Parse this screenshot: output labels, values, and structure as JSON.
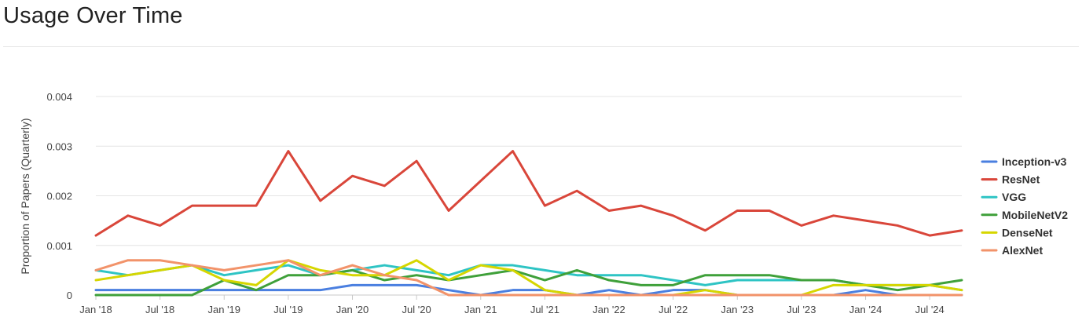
{
  "page": {
    "title": "Usage Over Time"
  },
  "chart_data": {
    "type": "line",
    "title": "",
    "xlabel": "",
    "ylabel": "Proportion of Papers (Quarterly)",
    "ylim": [
      0,
      0.004
    ],
    "yticks": [
      "0",
      "0.001",
      "0.002",
      "0.003",
      "0.004"
    ],
    "ytick_values": [
      0,
      0.001,
      0.002,
      0.003,
      0.004
    ],
    "xticks": [
      "Jan '18",
      "Jul '18",
      "Jan '19",
      "Jul '19",
      "Jan '20",
      "Jul '20",
      "Jan '21",
      "Jul '21",
      "Jan '22",
      "Jul '22",
      "Jan '23",
      "Jul '23",
      "Jan '24",
      "Jul '24"
    ],
    "x": [
      "2018-Q1",
      "2018-Q2",
      "2018-Q3",
      "2018-Q4",
      "2019-Q1",
      "2019-Q2",
      "2019-Q3",
      "2019-Q4",
      "2020-Q1",
      "2020-Q2",
      "2020-Q3",
      "2020-Q4",
      "2021-Q1",
      "2021-Q2",
      "2021-Q3",
      "2021-Q4",
      "2022-Q1",
      "2022-Q2",
      "2022-Q3",
      "2022-Q4",
      "2023-Q1",
      "2023-Q2",
      "2023-Q3",
      "2023-Q4",
      "2024-Q1",
      "2024-Q2",
      "2024-Q3",
      "2024-Q4"
    ],
    "grid": true,
    "legend_position": "right",
    "series": [
      {
        "name": "Inception-v3",
        "color": "#4a7fe0",
        "values": [
          0.0001,
          0.0001,
          0.0001,
          0.0001,
          0.0001,
          0.0001,
          0.0001,
          0.0001,
          0.0002,
          0.0002,
          0.0002,
          0.0001,
          0,
          0.0001,
          0.0001,
          0,
          0.0001,
          0,
          0.0001,
          0.0001,
          0,
          0,
          0,
          0,
          0.0001,
          0,
          0,
          0
        ]
      },
      {
        "name": "ResNet",
        "color": "#d9463a",
        "values": [
          0.0012,
          0.0016,
          0.0014,
          0.0018,
          0.0018,
          0.0018,
          0.0029,
          0.0019,
          0.0024,
          0.0022,
          0.0027,
          0.0017,
          0.0023,
          0.0029,
          0.0018,
          0.0021,
          0.0017,
          0.0018,
          0.0016,
          0.0013,
          0.0017,
          0.0017,
          0.0014,
          0.0016,
          0.0015,
          0.0014,
          0.0012,
          0.0013
        ]
      },
      {
        "name": "VGG",
        "color": "#2ec4c4",
        "values": [
          0.0005,
          0.0004,
          0.0005,
          0.0006,
          0.0004,
          0.0005,
          0.0006,
          0.0004,
          0.0005,
          0.0006,
          0.0005,
          0.0004,
          0.0006,
          0.0006,
          0.0005,
          0.0004,
          0.0004,
          0.0004,
          0.0003,
          0.0002,
          0.0003,
          0.0003,
          0.0003,
          0.0003,
          0.0002,
          0.0002,
          0.0002,
          0.0001
        ]
      },
      {
        "name": "MobileNetV2",
        "color": "#3fa03a",
        "values": [
          0,
          0,
          0,
          0,
          0.0003,
          0.0001,
          0.0004,
          0.0004,
          0.0005,
          0.0003,
          0.0004,
          0.0003,
          0.0004,
          0.0005,
          0.0003,
          0.0005,
          0.0003,
          0.0002,
          0.0002,
          0.0004,
          0.0004,
          0.0004,
          0.0003,
          0.0003,
          0.0002,
          0.0001,
          0.0002,
          0.0003
        ]
      },
      {
        "name": "DenseNet",
        "color": "#d6d600",
        "values": [
          0.0003,
          0.0004,
          0.0005,
          0.0006,
          0.0003,
          0.0002,
          0.0007,
          0.0005,
          0.0004,
          0.0004,
          0.0007,
          0.0003,
          0.0006,
          0.0005,
          0.0001,
          0,
          0,
          0,
          0,
          0.0001,
          0,
          0,
          0,
          0.0002,
          0.0002,
          0.0002,
          0.0002,
          0.0001
        ]
      },
      {
        "name": "AlexNet",
        "color": "#f2936a",
        "values": [
          0.0005,
          0.0007,
          0.0007,
          0.0006,
          0.0005,
          0.0006,
          0.0007,
          0.0004,
          0.0006,
          0.0004,
          0.0003,
          0,
          0,
          0,
          0,
          0,
          0,
          0,
          0,
          0,
          0,
          0,
          0,
          0,
          0,
          0,
          0,
          0
        ]
      }
    ]
  }
}
